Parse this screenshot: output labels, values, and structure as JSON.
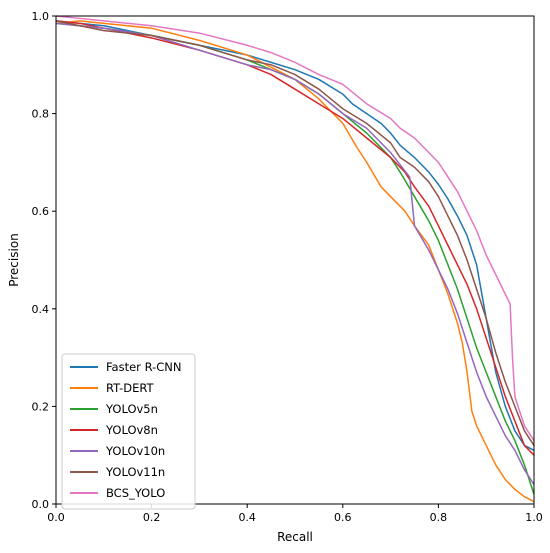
{
  "chart_data": {
    "type": "line",
    "title": "",
    "xlabel": "Recall",
    "ylabel": "Precision",
    "xlim": [
      0.0,
      1.0
    ],
    "ylim": [
      0.0,
      1.0
    ],
    "xticks": [
      "0.0",
      "0.2",
      "0.4",
      "0.6",
      "0.8",
      "1.0"
    ],
    "yticks": [
      "0.0",
      "0.2",
      "0.4",
      "0.6",
      "0.8",
      "1.0"
    ],
    "grid": false,
    "legend_position": "lower-left",
    "series": [
      {
        "name": "Faster R-CNN",
        "color": "#1f77b4",
        "x": [
          0.0,
          0.05,
          0.1,
          0.2,
          0.3,
          0.4,
          0.45,
          0.5,
          0.55,
          0.6,
          0.62,
          0.65,
          0.68,
          0.7,
          0.72,
          0.75,
          0.78,
          0.8,
          0.82,
          0.84,
          0.86,
          0.88,
          0.9,
          0.92,
          0.94,
          0.96,
          0.98,
          1.0
        ],
        "y": [
          0.99,
          0.985,
          0.98,
          0.96,
          0.94,
          0.92,
          0.905,
          0.89,
          0.87,
          0.84,
          0.82,
          0.8,
          0.78,
          0.76,
          0.735,
          0.71,
          0.68,
          0.655,
          0.625,
          0.59,
          0.55,
          0.49,
          0.38,
          0.27,
          0.2,
          0.15,
          0.12,
          0.11
        ]
      },
      {
        "name": "RT-DERT",
        "color": "#ff7f0e",
        "x": [
          0.0,
          0.05,
          0.1,
          0.2,
          0.3,
          0.4,
          0.5,
          0.55,
          0.6,
          0.63,
          0.65,
          0.68,
          0.7,
          0.73,
          0.75,
          0.78,
          0.8,
          0.82,
          0.84,
          0.85,
          0.86,
          0.87,
          0.88,
          0.9,
          0.92,
          0.94,
          0.96,
          0.98,
          1.0
        ],
        "y": [
          0.985,
          0.99,
          0.985,
          0.975,
          0.95,
          0.92,
          0.87,
          0.83,
          0.78,
          0.73,
          0.7,
          0.65,
          0.63,
          0.6,
          0.57,
          0.53,
          0.48,
          0.43,
          0.37,
          0.33,
          0.27,
          0.19,
          0.16,
          0.12,
          0.08,
          0.05,
          0.03,
          0.015,
          0.005
        ]
      },
      {
        "name": "YOLOv5n",
        "color": "#2ca02c",
        "x": [
          0.0,
          0.05,
          0.1,
          0.2,
          0.3,
          0.4,
          0.5,
          0.55,
          0.6,
          0.65,
          0.7,
          0.72,
          0.75,
          0.78,
          0.8,
          0.82,
          0.84,
          0.86,
          0.88,
          0.9,
          0.92,
          0.94,
          0.96,
          0.98,
          1.0
        ],
        "y": [
          0.985,
          0.98,
          0.975,
          0.96,
          0.94,
          0.91,
          0.87,
          0.84,
          0.8,
          0.76,
          0.71,
          0.68,
          0.63,
          0.58,
          0.54,
          0.49,
          0.44,
          0.38,
          0.32,
          0.27,
          0.22,
          0.17,
          0.13,
          0.08,
          0.02
        ]
      },
      {
        "name": "YOLOv8n",
        "color": "#d62728",
        "x": [
          0.0,
          0.05,
          0.1,
          0.2,
          0.3,
          0.4,
          0.45,
          0.5,
          0.55,
          0.6,
          0.65,
          0.7,
          0.73,
          0.75,
          0.78,
          0.8,
          0.82,
          0.84,
          0.86,
          0.88,
          0.9,
          0.92,
          0.94,
          0.96,
          0.98,
          1.0
        ],
        "y": [
          0.99,
          0.985,
          0.975,
          0.955,
          0.93,
          0.9,
          0.88,
          0.85,
          0.82,
          0.79,
          0.75,
          0.71,
          0.68,
          0.65,
          0.61,
          0.57,
          0.53,
          0.49,
          0.45,
          0.4,
          0.34,
          0.28,
          0.22,
          0.17,
          0.12,
          0.1
        ]
      },
      {
        "name": "YOLOv10n",
        "color": "#9467bd",
        "x": [
          0.0,
          0.05,
          0.1,
          0.2,
          0.3,
          0.4,
          0.45,
          0.5,
          0.55,
          0.6,
          0.65,
          0.7,
          0.74,
          0.75,
          0.78,
          0.8,
          0.82,
          0.84,
          0.86,
          0.88,
          0.9,
          0.92,
          0.94,
          0.96,
          0.98,
          1.0
        ],
        "y": [
          0.985,
          0.98,
          0.975,
          0.96,
          0.93,
          0.9,
          0.89,
          0.87,
          0.84,
          0.8,
          0.77,
          0.72,
          0.67,
          0.57,
          0.52,
          0.48,
          0.44,
          0.39,
          0.33,
          0.27,
          0.22,
          0.18,
          0.14,
          0.11,
          0.07,
          0.04
        ]
      },
      {
        "name": "YOLOv11n",
        "color": "#8c564b",
        "x": [
          0.0,
          0.05,
          0.1,
          0.2,
          0.3,
          0.4,
          0.45,
          0.5,
          0.55,
          0.6,
          0.65,
          0.7,
          0.72,
          0.75,
          0.78,
          0.8,
          0.82,
          0.84,
          0.86,
          0.88,
          0.9,
          0.92,
          0.94,
          0.96,
          0.98,
          1.0
        ],
        "y": [
          0.99,
          0.98,
          0.97,
          0.96,
          0.94,
          0.91,
          0.9,
          0.88,
          0.85,
          0.81,
          0.78,
          0.74,
          0.71,
          0.69,
          0.66,
          0.63,
          0.59,
          0.55,
          0.5,
          0.44,
          0.38,
          0.31,
          0.25,
          0.2,
          0.15,
          0.12
        ]
      },
      {
        "name": "BCS_YOLO",
        "color": "#e377c2",
        "x": [
          0.0,
          0.05,
          0.1,
          0.2,
          0.3,
          0.4,
          0.45,
          0.5,
          0.55,
          0.6,
          0.65,
          0.7,
          0.72,
          0.75,
          0.78,
          0.8,
          0.82,
          0.84,
          0.86,
          0.88,
          0.9,
          0.92,
          0.94,
          0.95,
          0.955,
          0.96,
          0.97,
          0.98,
          1.0
        ],
        "y": [
          1.0,
          0.995,
          0.99,
          0.98,
          0.965,
          0.94,
          0.925,
          0.905,
          0.88,
          0.86,
          0.82,
          0.79,
          0.77,
          0.75,
          0.72,
          0.7,
          0.67,
          0.64,
          0.6,
          0.56,
          0.51,
          0.47,
          0.43,
          0.41,
          0.3,
          0.22,
          0.19,
          0.16,
          0.13
        ]
      }
    ]
  }
}
